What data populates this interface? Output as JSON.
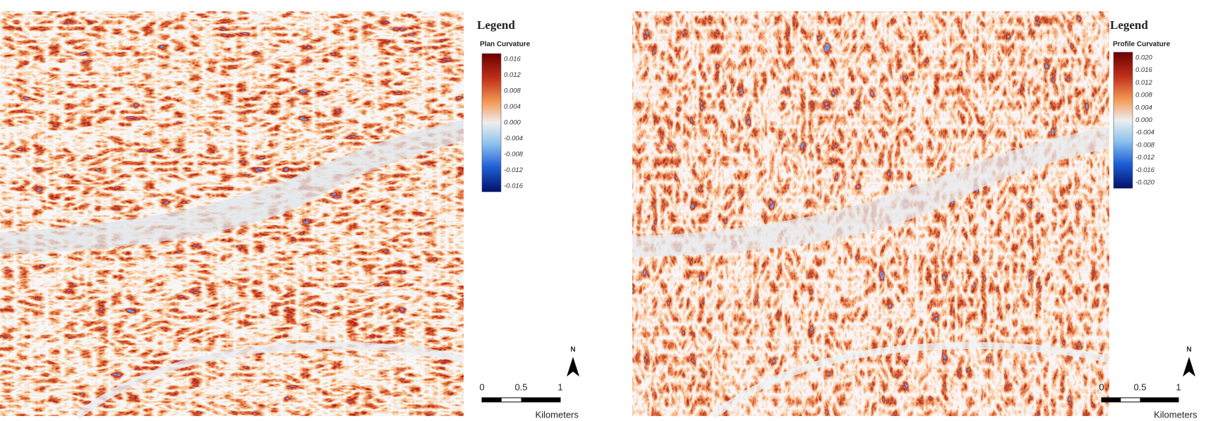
{
  "panels": [
    {
      "legend_title": "Legend",
      "variable": "Plan Curvature",
      "colorbar_labels": [
        "0.016",
        "0.012",
        "0.008",
        "0.004",
        "0.000",
        "-0.004",
        "-0.008",
        "-0.012",
        "-0.016"
      ],
      "scale_labels": [
        "0",
        "0.5",
        "1"
      ],
      "scale_unit": "Kilometers",
      "north": "N"
    },
    {
      "legend_title": "Legend",
      "variable": "Profile Curvature",
      "colorbar_labels": [
        "0.020",
        "0.016",
        "0.012",
        "0.008",
        "0.004",
        "0.000",
        "-0.004",
        "-0.008",
        "-0.012",
        "-0.016",
        "-0.020"
      ],
      "scale_labels": [
        "0",
        "0.5",
        "1"
      ],
      "scale_unit": "Kilometers",
      "north": "N"
    }
  ]
}
